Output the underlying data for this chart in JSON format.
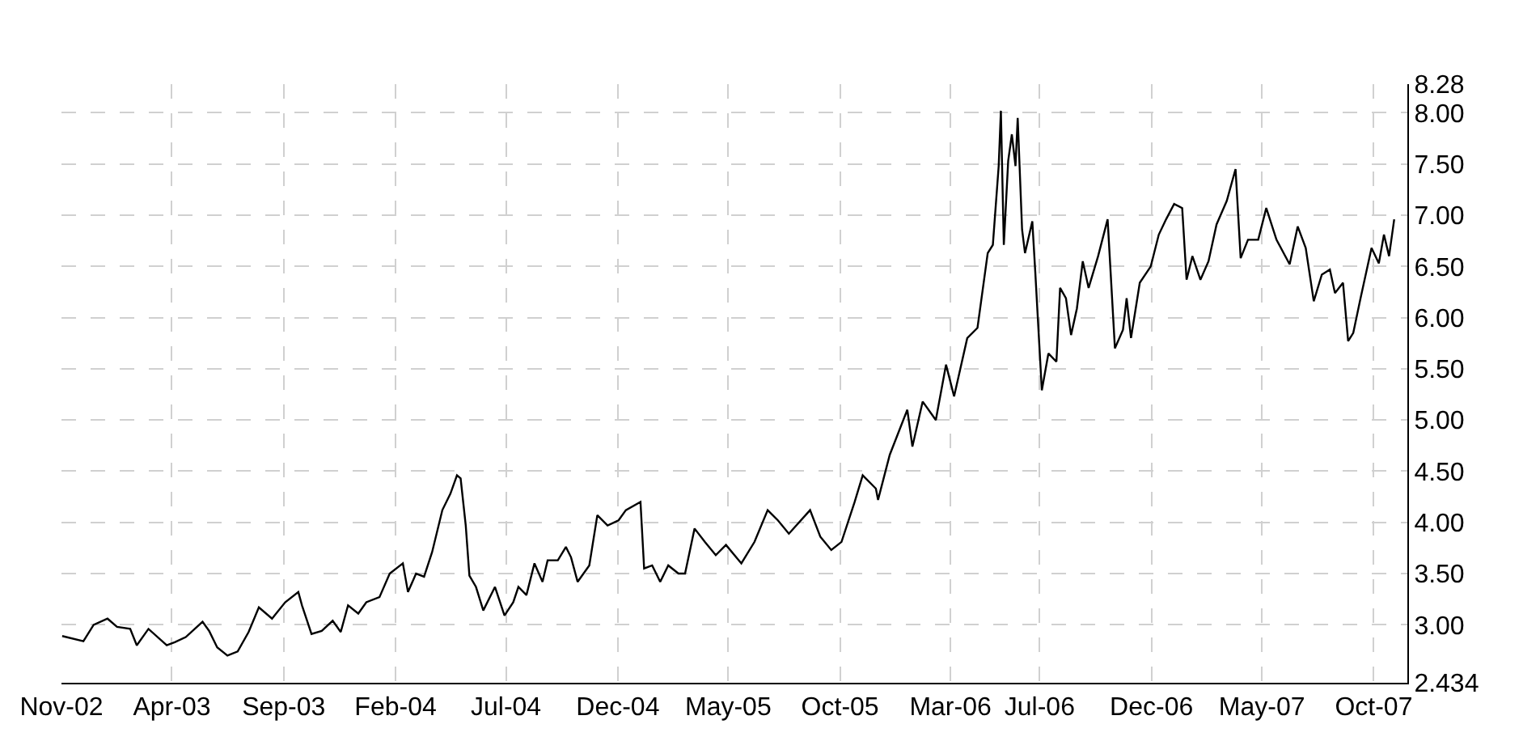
{
  "chart_data": {
    "type": "line",
    "grid": true,
    "legend": false,
    "xlim": [
      "2002-11-01",
      "2007-11-16"
    ],
    "xticks": [
      {
        "value": "2002-11-01",
        "label": "Nov-02"
      },
      {
        "value": "2003-04-01",
        "label": "Apr-03"
      },
      {
        "value": "2003-09-01",
        "label": "Sep-03"
      },
      {
        "value": "2004-02-01",
        "label": "Feb-04"
      },
      {
        "value": "2004-07-01",
        "label": "Jul-04"
      },
      {
        "value": "2004-12-01",
        "label": "Dec-04"
      },
      {
        "value": "2005-05-01",
        "label": "May-05"
      },
      {
        "value": "2005-10-01",
        "label": "Oct-05"
      },
      {
        "value": "2006-03-01",
        "label": "Mar-06"
      },
      {
        "value": "2006-07-01",
        "label": "Jul-06"
      },
      {
        "value": "2006-12-01",
        "label": "Dec-06"
      },
      {
        "value": "2007-05-01",
        "label": "May-07"
      },
      {
        "value": "2007-10-01",
        "label": "Oct-07"
      }
    ],
    "ylim": [
      2.434,
      8.28
    ],
    "yticks": [
      2.434,
      {
        "value": 3,
        "label": "3.00"
      },
      {
        "value": 3.5,
        "label": "3.50"
      },
      {
        "value": 4,
        "label": "4.00"
      },
      {
        "value": 4.5,
        "label": "4.50"
      },
      {
        "value": 5,
        "label": "5.00"
      },
      {
        "value": 5.5,
        "label": "5.50"
      },
      {
        "value": 6,
        "label": "6.00"
      },
      {
        "value": 6.5,
        "label": "6.50"
      },
      {
        "value": 7,
        "label": "7.00"
      },
      {
        "value": 7.5,
        "label": "7.50"
      },
      {
        "value": 8,
        "label": "8.00"
      },
      8.28
    ],
    "x": [
      "2002-11-02",
      "2002-12-01",
      "2002-12-15",
      "2003-01-03",
      "2003-01-16",
      "2003-02-03",
      "2003-02-12",
      "2003-02-28",
      "2003-03-25",
      "2003-04-05",
      "2003-04-20",
      "2003-05-13",
      "2003-05-22",
      "2003-06-02",
      "2003-06-16",
      "2003-06-30",
      "2003-07-15",
      "2003-07-29",
      "2003-08-16",
      "2003-09-03",
      "2003-09-21",
      "2003-09-26",
      "2003-10-09",
      "2003-10-23",
      "2003-11-07",
      "2003-11-18",
      "2003-11-28",
      "2003-12-12",
      "2003-12-23",
      "2004-01-10",
      "2004-01-24",
      "2004-02-11",
      "2004-02-18",
      "2004-02-29",
      "2004-03-11",
      "2004-03-22",
      "2004-04-05",
      "2004-04-16",
      "2004-04-25",
      "2004-04-30",
      "2004-05-07",
      "2004-05-12",
      "2004-05-21",
      "2004-05-31",
      "2004-06-16",
      "2004-06-29",
      "2004-07-11",
      "2004-07-18",
      "2004-07-29",
      "2004-08-09",
      "2004-08-20",
      "2004-08-27",
      "2004-09-10",
      "2004-09-21",
      "2004-09-28",
      "2004-10-07",
      "2004-10-23",
      "2004-11-03",
      "2004-11-17",
      "2004-12-02",
      "2004-12-12",
      "2005-01-01",
      "2005-01-06",
      "2005-01-17",
      "2005-01-28",
      "2005-02-08",
      "2005-02-22",
      "2005-03-03",
      "2005-03-16",
      "2005-03-30",
      "2005-04-14",
      "2005-04-28",
      "2005-05-19",
      "2005-06-06",
      "2005-06-24",
      "2005-07-08",
      "2005-07-23",
      "2005-08-21",
      "2005-09-04",
      "2005-09-19",
      "2005-10-03",
      "2005-10-21",
      "2005-11-01",
      "2005-11-19",
      "2005-11-22",
      "2005-12-08",
      "2006-01-01",
      "2006-01-08",
      "2006-01-22",
      "2006-02-09",
      "2006-02-23",
      "2006-03-06",
      "2006-03-24",
      "2006-04-07",
      "2006-04-21",
      "2006-04-28",
      "2006-05-06",
      "2006-05-09",
      "2006-05-13",
      "2006-05-19",
      "2006-05-24",
      "2006-05-29",
      "2006-06-01",
      "2006-06-07",
      "2006-06-11",
      "2006-06-21",
      "2006-06-25",
      "2006-07-04",
      "2006-07-13",
      "2006-07-24",
      "2006-07-29",
      "2006-08-06",
      "2006-08-13",
      "2006-08-21",
      "2006-08-29",
      "2006-09-06",
      "2006-09-19",
      "2006-10-02",
      "2006-10-12",
      "2006-10-23",
      "2006-10-28",
      "2006-11-03",
      "2006-11-15",
      "2006-11-30",
      "2006-12-11",
      "2006-12-21",
      "2007-01-01",
      "2007-01-12",
      "2007-01-18",
      "2007-01-26",
      "2007-02-06",
      "2007-02-17",
      "2007-02-28",
      "2007-03-14",
      "2007-03-26",
      "2007-04-02",
      "2007-04-12",
      "2007-04-26",
      "2007-05-07",
      "2007-05-21",
      "2007-06-08",
      "2007-06-19",
      "2007-06-30",
      "2007-07-11",
      "2007-07-22",
      "2007-08-02",
      "2007-08-09",
      "2007-08-20",
      "2007-08-27",
      "2007-09-03",
      "2007-09-13",
      "2007-09-28",
      "2007-10-08",
      "2007-10-15",
      "2007-10-22",
      "2007-10-29"
    ],
    "series": [
      {
        "color": "#000000",
        "values": [
          2.89,
          2.84,
          3.0,
          3.06,
          2.98,
          2.96,
          2.8,
          2.96,
          2.8,
          2.83,
          2.88,
          3.03,
          2.94,
          2.78,
          2.7,
          2.74,
          2.93,
          3.17,
          3.06,
          3.22,
          3.32,
          3.19,
          2.91,
          2.94,
          3.04,
          2.93,
          3.19,
          3.11,
          3.22,
          3.27,
          3.5,
          3.6,
          3.32,
          3.5,
          3.47,
          3.71,
          4.12,
          4.28,
          4.46,
          4.43,
          3.97,
          3.48,
          3.37,
          3.14,
          3.37,
          3.09,
          3.22,
          3.37,
          3.29,
          3.6,
          3.42,
          3.63,
          3.63,
          3.76,
          3.66,
          3.42,
          3.58,
          4.07,
          3.97,
          4.02,
          4.12,
          4.2,
          3.55,
          3.58,
          3.42,
          3.58,
          3.5,
          3.5,
          3.94,
          3.81,
          3.68,
          3.78,
          3.6,
          3.81,
          4.12,
          4.02,
          3.89,
          4.12,
          3.86,
          3.73,
          3.81,
          4.2,
          4.46,
          4.33,
          4.22,
          4.66,
          5.1,
          4.74,
          5.18,
          5.0,
          5.54,
          5.23,
          5.8,
          5.9,
          6.63,
          6.71,
          7.48,
          8.02,
          6.71,
          7.53,
          7.79,
          7.48,
          7.95,
          6.86,
          6.63,
          6.94,
          6.45,
          5.29,
          5.65,
          5.57,
          6.29,
          6.19,
          5.83,
          6.09,
          6.55,
          6.29,
          6.6,
          6.96,
          5.7,
          5.88,
          6.19,
          5.8,
          6.34,
          6.5,
          6.81,
          6.96,
          7.11,
          7.07,
          6.37,
          6.6,
          6.37,
          6.55,
          6.91,
          7.14,
          7.45,
          6.58,
          6.76,
          6.76,
          7.07,
          6.76,
          6.52,
          6.89,
          6.68,
          6.16,
          6.42,
          6.47,
          6.24,
          6.34,
          5.77,
          5.85,
          6.19,
          6.68,
          6.53,
          6.81,
          6.6,
          6.96
        ]
      }
    ]
  }
}
